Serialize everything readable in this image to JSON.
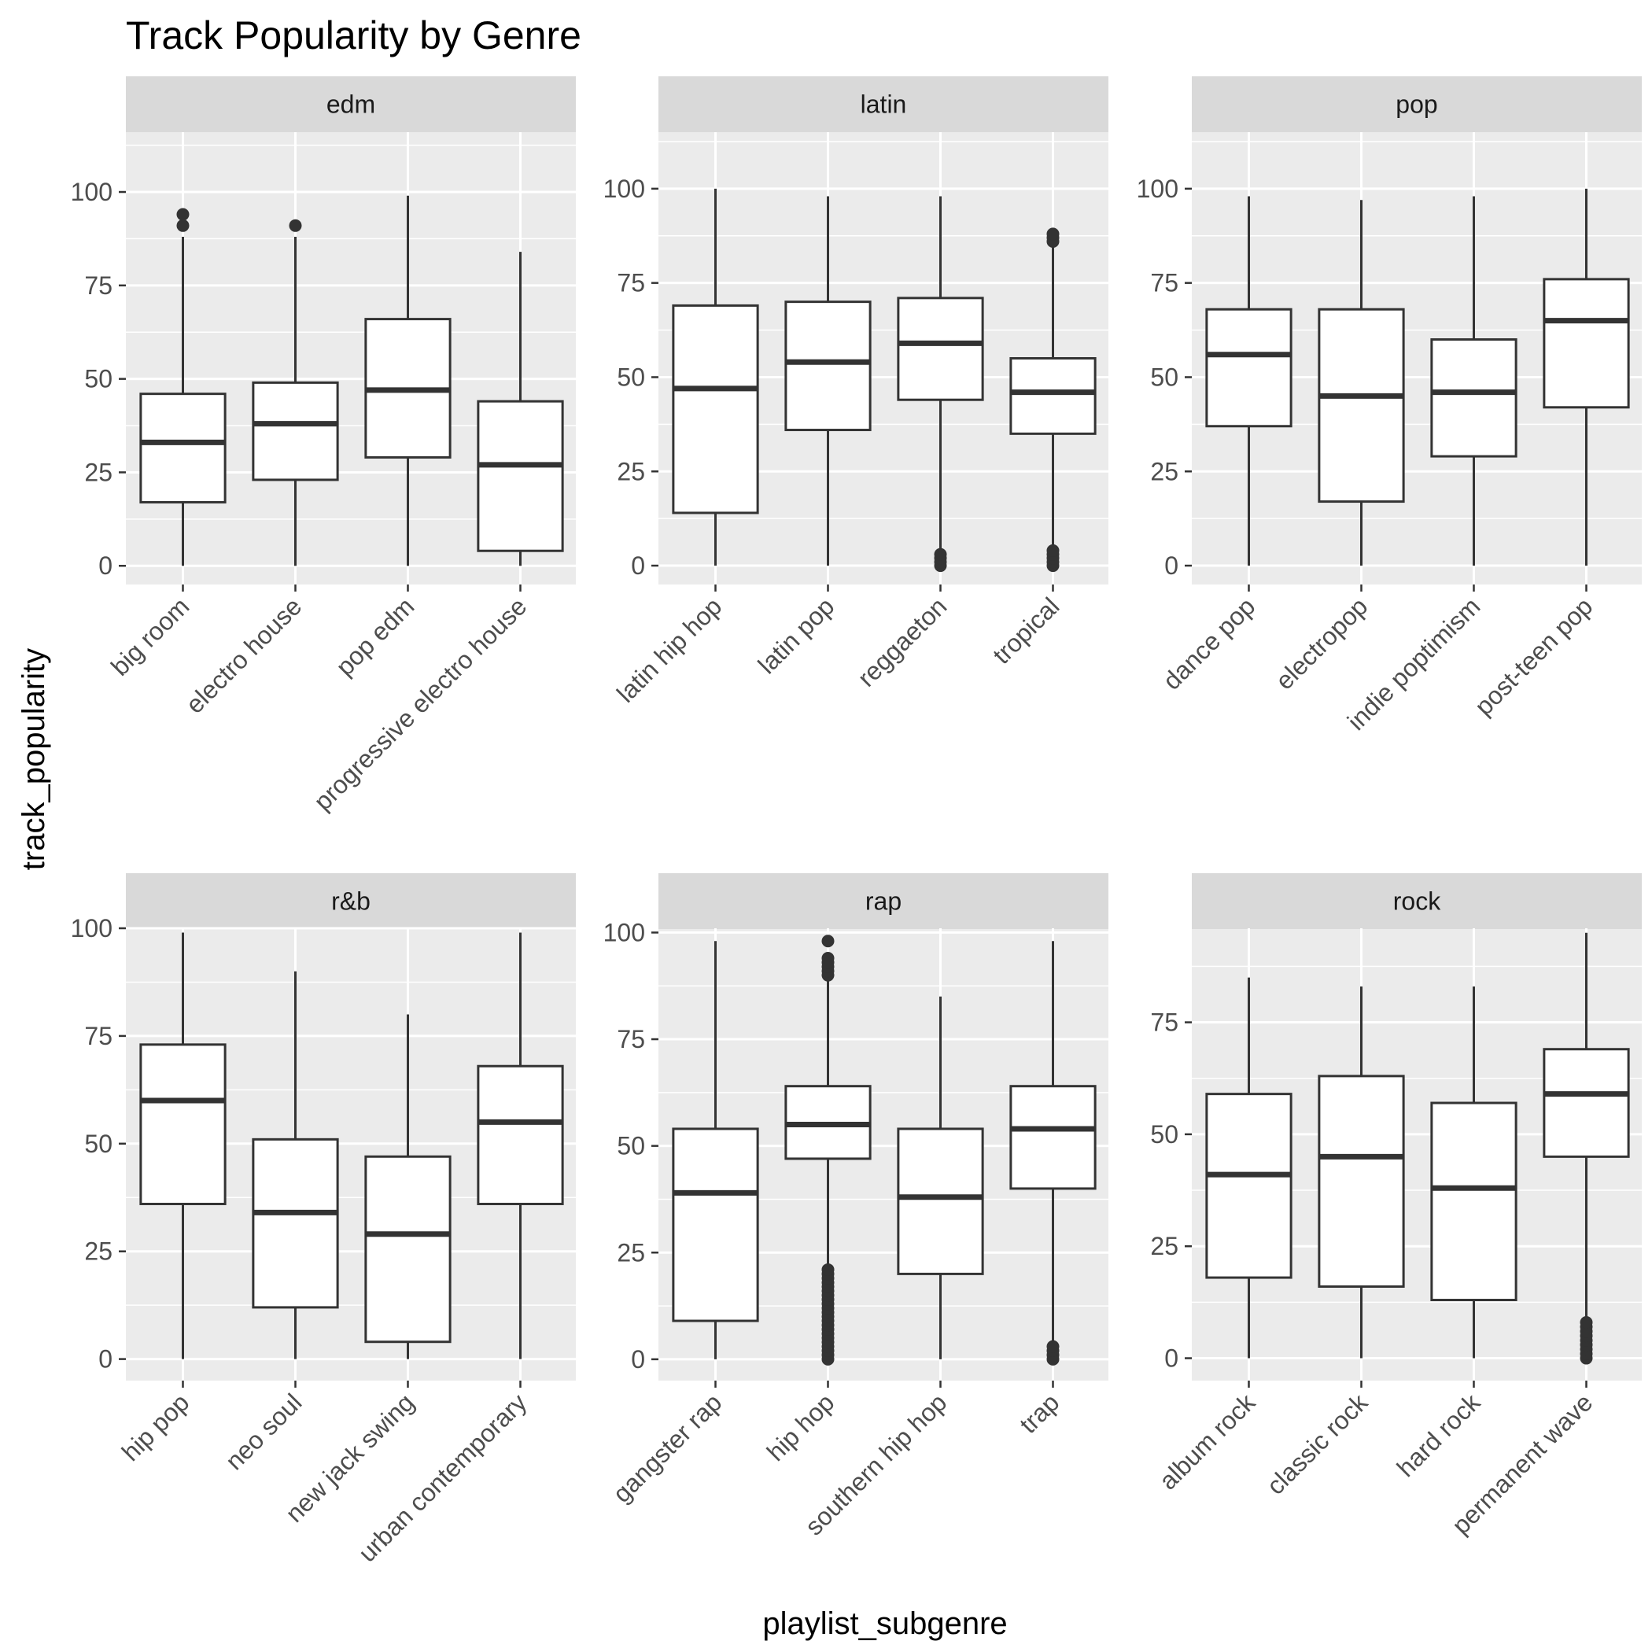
{
  "chart_data": {
    "type": "boxplot",
    "title": "Track Popularity by Genre",
    "xlabel": "playlist_subgenre",
    "ylabel": "track_popularity",
    "colors": {
      "panel_background": "#ebebeb",
      "strip_background": "#d9d9d9",
      "grid": "#ffffff",
      "box_line": "#333333",
      "box_fill": "#ffffff",
      "tick_text": "#4d4d4d"
    },
    "panels": [
      {
        "facet": "edm",
        "ylim": [
          -5,
          116
        ],
        "yticks": [
          0,
          25,
          50,
          75,
          100
        ],
        "categories": [
          "big room",
          "electro house",
          "pop edm",
          "progressive electro house"
        ],
        "boxes": [
          {
            "min": 0,
            "q1": 17,
            "median": 33,
            "q3": 46,
            "max": 88,
            "outliers": [
              91,
              94
            ]
          },
          {
            "min": 0,
            "q1": 23,
            "median": 38,
            "q3": 49,
            "max": 88,
            "outliers": [
              91
            ]
          },
          {
            "min": 0,
            "q1": 29,
            "median": 47,
            "q3": 66,
            "max": 99,
            "outliers": []
          },
          {
            "min": 0,
            "q1": 4,
            "median": 27,
            "q3": 44,
            "max": 84,
            "outliers": []
          }
        ]
      },
      {
        "facet": "latin",
        "ylim": [
          -5,
          115
        ],
        "yticks": [
          0,
          25,
          50,
          75,
          100
        ],
        "categories": [
          "latin hip hop",
          "latin pop",
          "reggaeton",
          "tropical"
        ],
        "boxes": [
          {
            "min": 0,
            "q1": 14,
            "median": 47,
            "q3": 69,
            "max": 100,
            "outliers": []
          },
          {
            "min": 0,
            "q1": 36,
            "median": 54,
            "q3": 70,
            "max": 98,
            "outliers": []
          },
          {
            "min": 4,
            "q1": 44,
            "median": 59,
            "q3": 71,
            "max": 98,
            "outliers": [
              0,
              1,
              2,
              3
            ]
          },
          {
            "min": 5,
            "q1": 35,
            "median": 46,
            "q3": 55,
            "max": 85,
            "outliers": [
              0,
              1,
              2,
              3,
              4,
              86,
              87,
              88
            ]
          }
        ]
      },
      {
        "facet": "pop",
        "ylim": [
          -5,
          115
        ],
        "yticks": [
          0,
          25,
          50,
          75,
          100
        ],
        "categories": [
          "dance pop",
          "electropop",
          "indie poptimism",
          "post-teen pop"
        ],
        "boxes": [
          {
            "min": 0,
            "q1": 37,
            "median": 56,
            "q3": 68,
            "max": 98,
            "outliers": []
          },
          {
            "min": 0,
            "q1": 17,
            "median": 45,
            "q3": 68,
            "max": 97,
            "outliers": []
          },
          {
            "min": 0,
            "q1": 29,
            "median": 46,
            "q3": 60,
            "max": 98,
            "outliers": []
          },
          {
            "min": 0,
            "q1": 42,
            "median": 65,
            "q3": 76,
            "max": 100,
            "outliers": []
          }
        ]
      },
      {
        "facet": "r&b",
        "ylim": [
          -5,
          100
        ],
        "yticks": [
          0,
          25,
          50,
          75,
          100
        ],
        "categories": [
          "hip pop",
          "neo soul",
          "new jack swing",
          "urban contemporary"
        ],
        "boxes": [
          {
            "min": 0,
            "q1": 36,
            "median": 60,
            "q3": 73,
            "max": 99,
            "outliers": []
          },
          {
            "min": 0,
            "q1": 12,
            "median": 34,
            "q3": 51,
            "max": 90,
            "outliers": []
          },
          {
            "min": 0,
            "q1": 4,
            "median": 29,
            "q3": 47,
            "max": 80,
            "outliers": []
          },
          {
            "min": 0,
            "q1": 36,
            "median": 55,
            "q3": 68,
            "max": 99,
            "outliers": []
          }
        ]
      },
      {
        "facet": "rap",
        "ylim": [
          -5,
          101
        ],
        "yticks": [
          0,
          25,
          50,
          75,
          100
        ],
        "categories": [
          "gangster rap",
          "hip hop",
          "southern hip hop",
          "trap"
        ],
        "boxes": [
          {
            "min": 0,
            "q1": 9,
            "median": 39,
            "q3": 54,
            "max": 98,
            "outliers": []
          },
          {
            "min": 22,
            "q1": 47,
            "median": 55,
            "q3": 64,
            "max": 89,
            "outliers": [
              0,
              1,
              2,
              3,
              4,
              5,
              6,
              7,
              8,
              9,
              10,
              11,
              12,
              13,
              14,
              15,
              16,
              17,
              18,
              19,
              20,
              21,
              90,
              91,
              92,
              93,
              94,
              98
            ]
          },
          {
            "min": 0,
            "q1": 20,
            "median": 38,
            "q3": 54,
            "max": 85,
            "outliers": []
          },
          {
            "min": 4,
            "q1": 40,
            "median": 54,
            "q3": 64,
            "max": 98,
            "outliers": [
              0,
              1,
              2,
              3
            ]
          }
        ]
      },
      {
        "facet": "rock",
        "ylim": [
          -5,
          96
        ],
        "yticks": [
          0,
          25,
          50,
          75
        ],
        "categories": [
          "album rock",
          "classic rock",
          "hard rock",
          "permanent wave"
        ],
        "boxes": [
          {
            "min": 0,
            "q1": 18,
            "median": 41,
            "q3": 59,
            "max": 85,
            "outliers": []
          },
          {
            "min": 0,
            "q1": 16,
            "median": 45,
            "q3": 63,
            "max": 83,
            "outliers": []
          },
          {
            "min": 0,
            "q1": 13,
            "median": 38,
            "q3": 57,
            "max": 83,
            "outliers": []
          },
          {
            "min": 9,
            "q1": 45,
            "median": 59,
            "q3": 69,
            "max": 95,
            "outliers": [
              0,
              1,
              2,
              3,
              4,
              5,
              6,
              7,
              8
            ]
          }
        ]
      }
    ]
  }
}
